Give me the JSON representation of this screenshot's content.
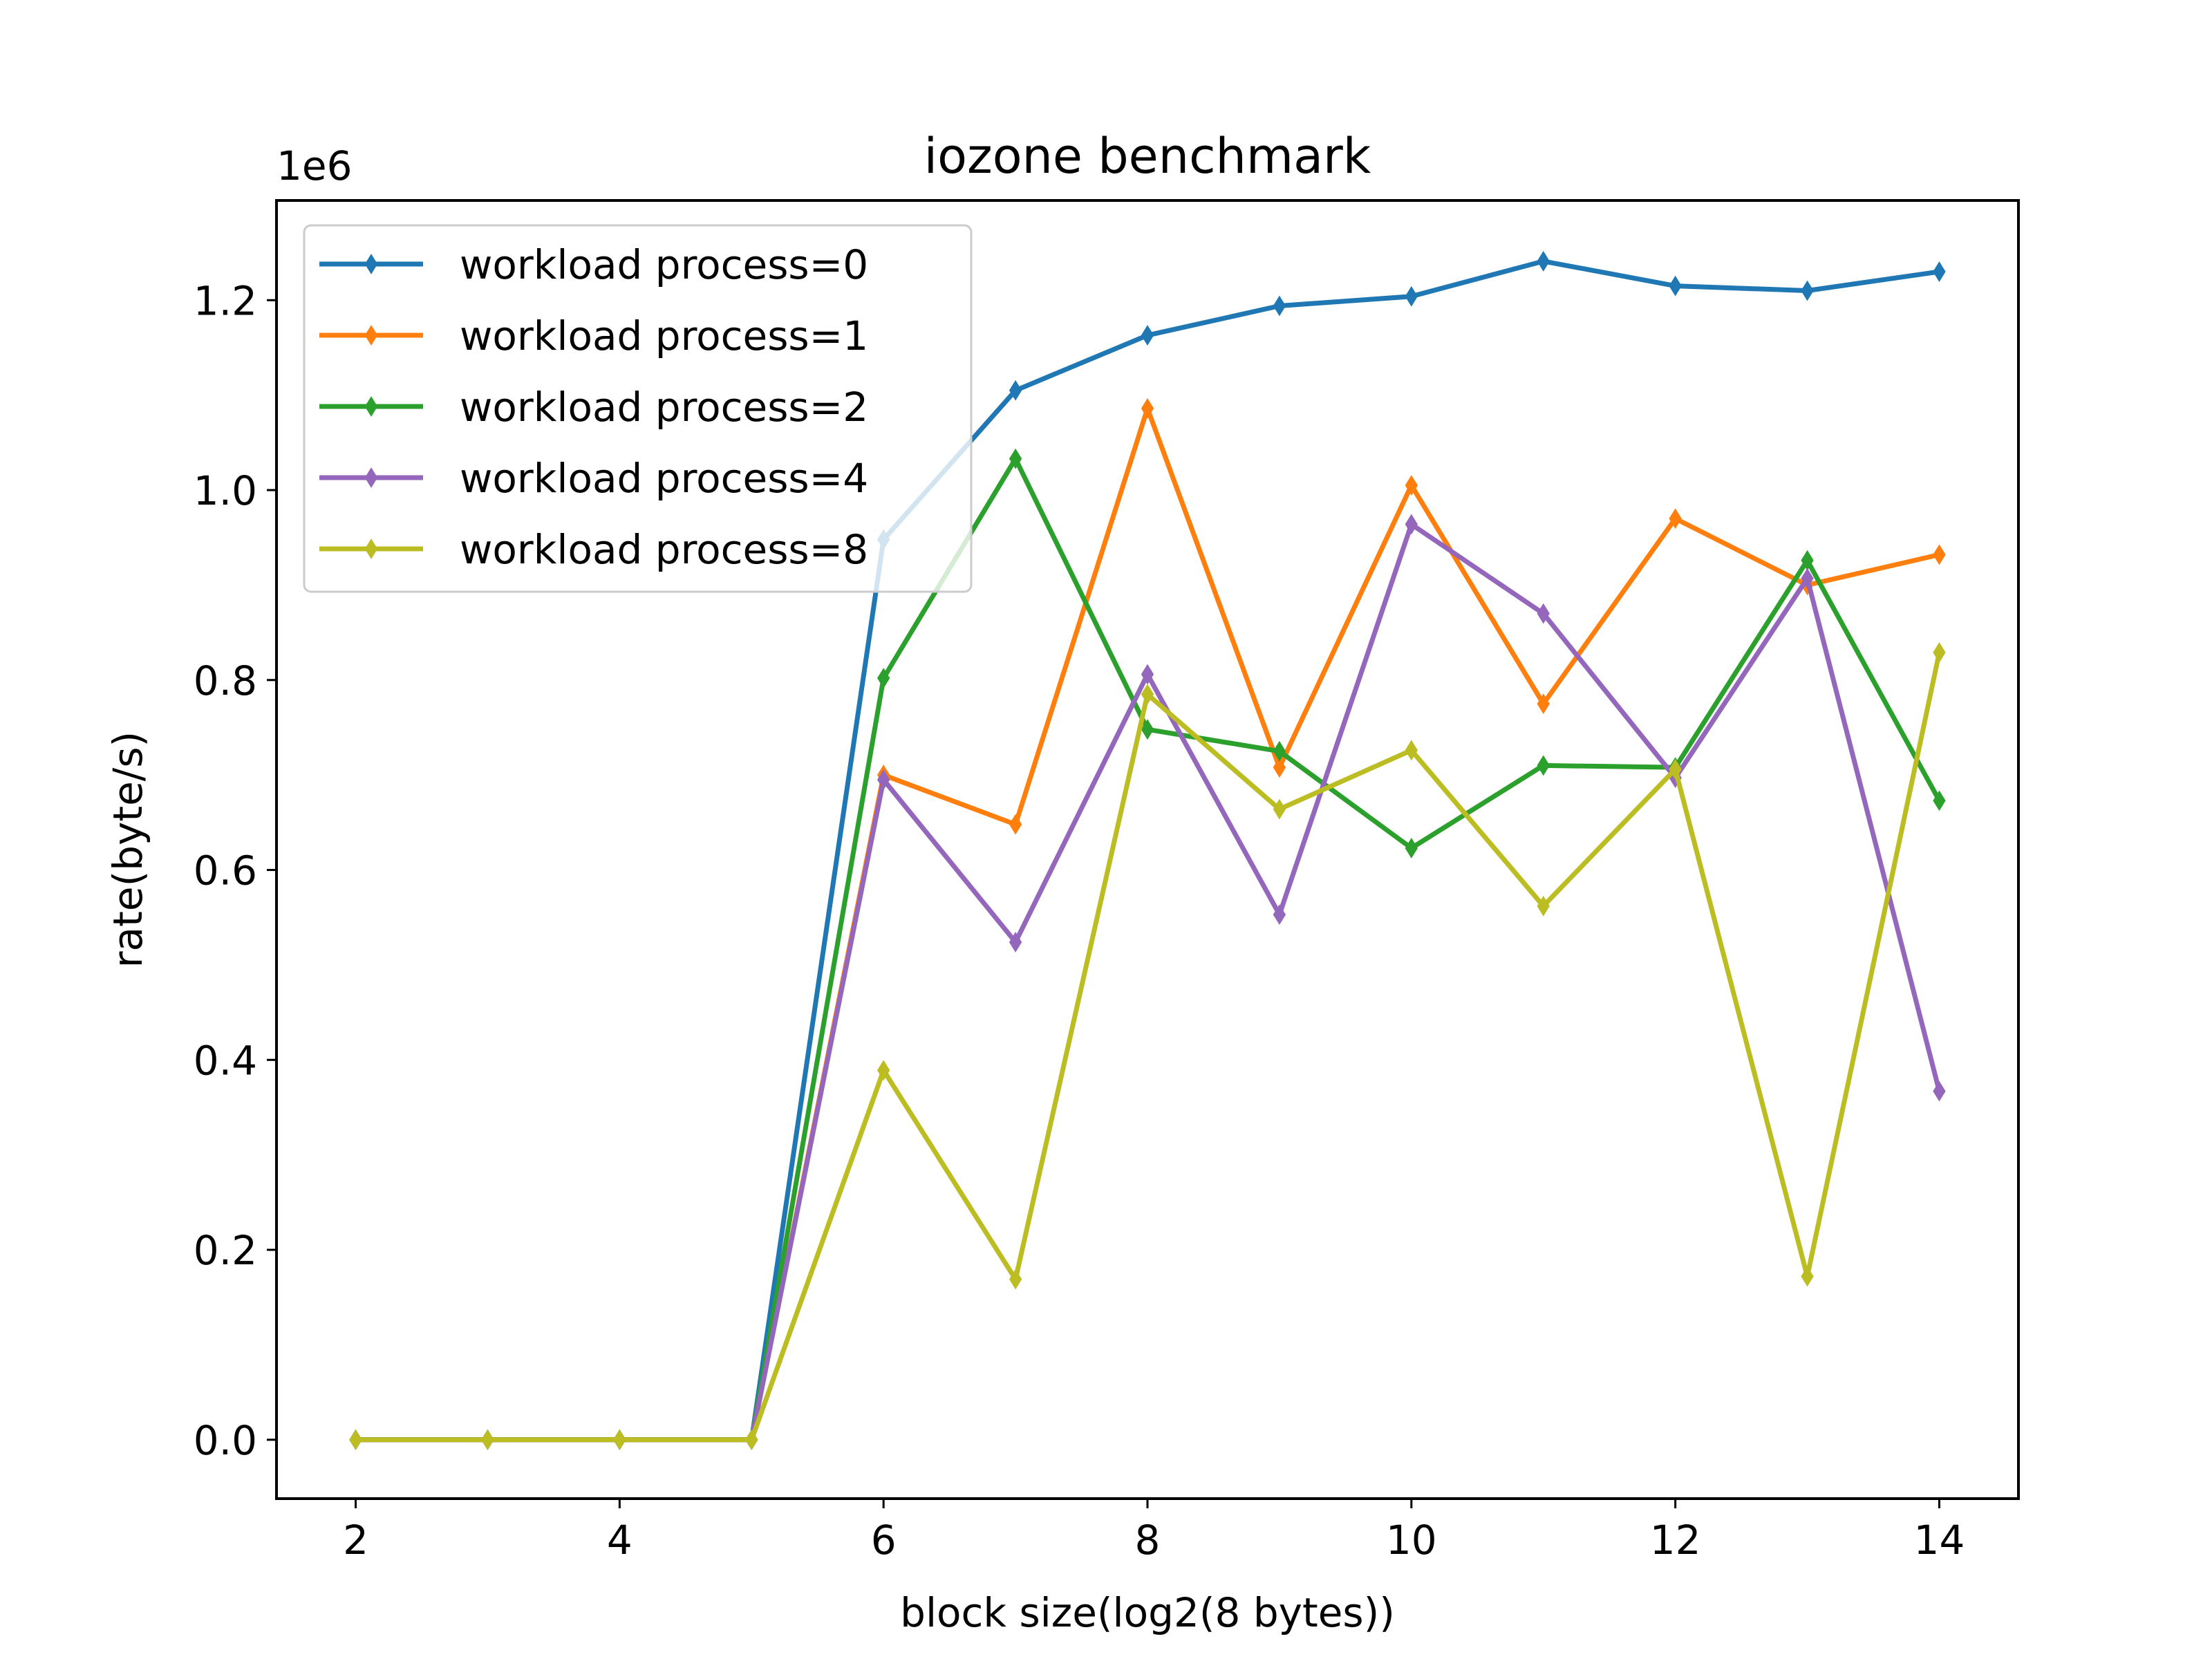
{
  "chart_data": {
    "type": "line",
    "title": "iozone benchmark",
    "xlabel": "block size(log2(8 bytes))",
    "ylabel": "rate(byte/s)",
    "y_offset_label": "1e6",
    "xlim": [
      1.4,
      14.6
    ],
    "ylim": [
      -0.062,
      1.305
    ],
    "x_ticks": [
      2,
      4,
      6,
      8,
      10,
      12,
      14
    ],
    "x_tick_labels": [
      "2",
      "4",
      "6",
      "8",
      "10",
      "12",
      "14"
    ],
    "y_ticks": [
      0.0,
      0.2,
      0.4,
      0.6,
      0.8,
      1.0,
      1.2
    ],
    "y_tick_labels": [
      "0.0",
      "0.2",
      "0.4",
      "0.6",
      "0.8",
      "1.0",
      "1.2"
    ],
    "grid": false,
    "legend_position": "top-left",
    "marker": "thin-diamond",
    "x": [
      2,
      3,
      4,
      5,
      6,
      7,
      8,
      9,
      10,
      11,
      12,
      13,
      14
    ],
    "series": [
      {
        "name": "workload process=0",
        "color": "#1f77b4",
        "values": [
          0,
          0,
          0,
          0,
          0.948,
          1.105,
          1.163,
          1.194,
          1.204,
          1.241,
          1.215,
          1.21,
          1.23
        ]
      },
      {
        "name": "workload process=1",
        "color": "#ff7f0e",
        "values": [
          0,
          0,
          0,
          0,
          0.7,
          0.648,
          1.086,
          0.708,
          1.005,
          0.775,
          0.97,
          0.9,
          0.932
        ]
      },
      {
        "name": "workload process=2",
        "color": "#2ca02c",
        "values": [
          0,
          0,
          0,
          0,
          0.802,
          1.033,
          0.748,
          0.725,
          0.623,
          0.71,
          0.708,
          0.926,
          0.673
        ]
      },
      {
        "name": "workload process=4",
        "color": "#9467bd",
        "values": [
          0,
          0,
          0,
          0,
          0.695,
          0.524,
          0.806,
          0.553,
          0.964,
          0.87,
          0.697,
          0.907,
          0.367
        ]
      },
      {
        "name": "workload process=8",
        "color": "#bcbd22",
        "values": [
          0,
          0,
          0,
          0,
          0.389,
          0.169,
          0.785,
          0.664,
          0.726,
          0.562,
          0.706,
          0.172,
          0.829
        ]
      }
    ]
  }
}
